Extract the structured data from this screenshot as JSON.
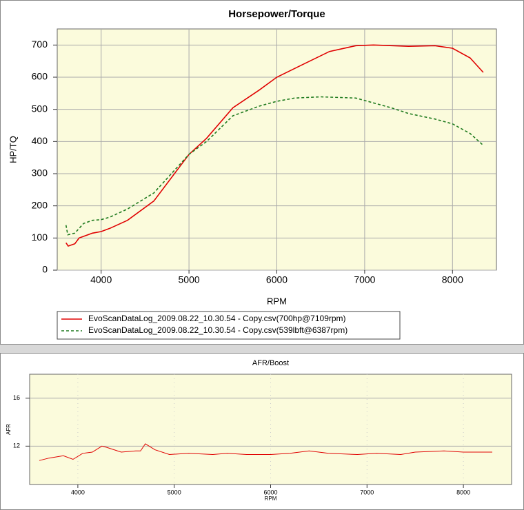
{
  "chart_data": [
    {
      "type": "line",
      "title": "Horsepower/Torque",
      "xlabel": "RPM",
      "ylabel": "HP/TQ",
      "xlim": [
        3500,
        8500
      ],
      "ylim": [
        0,
        750
      ],
      "xticks": [
        4000,
        5000,
        6000,
        7000,
        8000
      ],
      "yticks": [
        0,
        100,
        200,
        300,
        400,
        500,
        600,
        700
      ],
      "grid": true,
      "legend": "bottom",
      "series": [
        {
          "name": "EvoScanDataLog_2009.08.22_10.30.54 - Copy.csv(700hp@7109rpm)",
          "color": "#e00000",
          "dash": false,
          "x": [
            3600,
            3625,
            3700,
            3750,
            3900,
            4000,
            4100,
            4300,
            4600,
            5000,
            5200,
            5500,
            5800,
            6000,
            6300,
            6600,
            6900,
            7100,
            7500,
            7800,
            8000,
            8200,
            8350
          ],
          "values": [
            85,
            75,
            82,
            100,
            115,
            120,
            130,
            155,
            215,
            360,
            410,
            505,
            560,
            600,
            640,
            680,
            698,
            700,
            696,
            698,
            690,
            660,
            615
          ]
        },
        {
          "name": "EvoScanDataLog_2009.08.22_10.30.54 - Copy.csv(539lbft@6387rpm)",
          "color": "#1e7a1e",
          "dash": true,
          "x": [
            3600,
            3620,
            3700,
            3800,
            3900,
            4000,
            4100,
            4300,
            4600,
            5000,
            5200,
            5500,
            5800,
            6000,
            6200,
            6500,
            6900,
            7300,
            7500,
            7800,
            8000,
            8200,
            8350
          ],
          "values": [
            140,
            110,
            115,
            145,
            155,
            157,
            165,
            190,
            240,
            360,
            400,
            480,
            510,
            525,
            535,
            539,
            535,
            505,
            487,
            470,
            455,
            425,
            388
          ]
        }
      ]
    },
    {
      "type": "line",
      "title": "AFR/Boost",
      "xlabel": "RPM",
      "ylabel": "AFR",
      "xlim": [
        3500,
        8500
      ],
      "ylim": [
        8.8,
        18
      ],
      "xticks": [
        4000,
        5000,
        6000,
        7000,
        8000
      ],
      "yticks": [
        12,
        16
      ],
      "grid": true,
      "series": [
        {
          "color": "#e00000",
          "dash": false,
          "x": [
            3600,
            3700,
            3850,
            3950,
            4050,
            4150,
            4250,
            4300,
            4450,
            4600,
            4650,
            4700,
            4800,
            4950,
            5150,
            5400,
            5550,
            5750,
            6000,
            6200,
            6400,
            6600,
            6900,
            7100,
            7350,
            7500,
            7800,
            8000,
            8300
          ],
          "values": [
            10.8,
            11.0,
            11.2,
            10.9,
            11.4,
            11.5,
            12.0,
            11.9,
            11.5,
            11.6,
            11.6,
            12.2,
            11.7,
            11.3,
            11.4,
            11.3,
            11.4,
            11.3,
            11.3,
            11.4,
            11.6,
            11.4,
            11.3,
            11.4,
            11.3,
            11.5,
            11.6,
            11.5,
            11.5
          ]
        }
      ]
    }
  ]
}
